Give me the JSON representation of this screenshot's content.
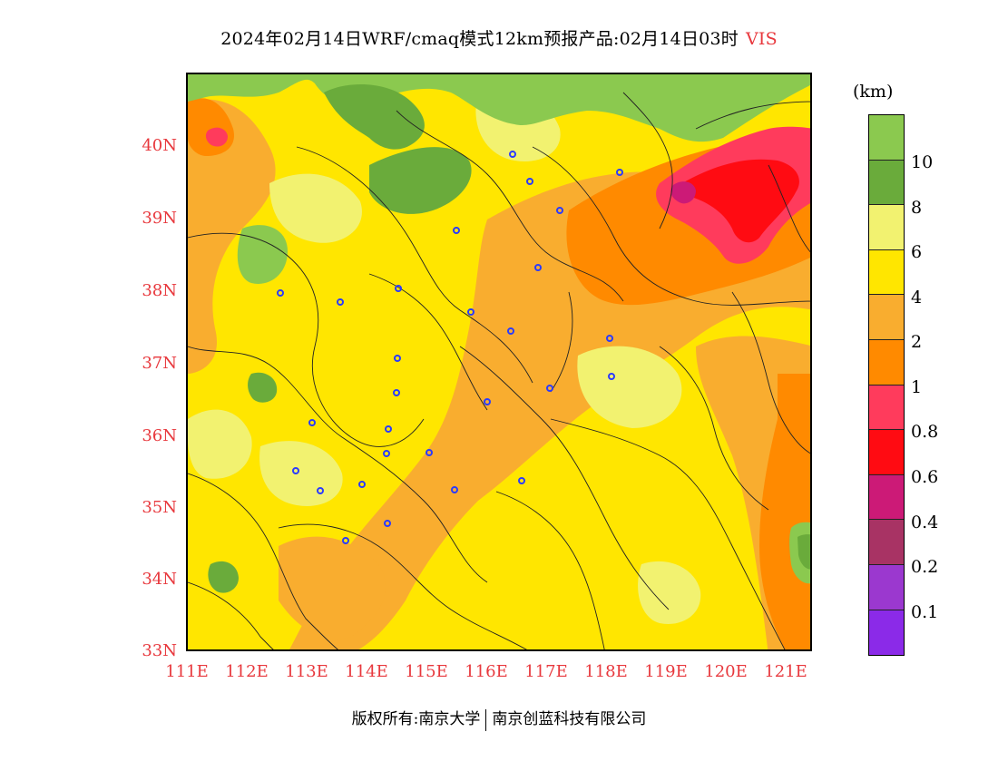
{
  "title": {
    "main": "2024年02月14日WRF/cmaq模式12km预报产品:02月14日03时",
    "variable": "VIS"
  },
  "unit": "(km)",
  "colors": {
    "accent_red": "#e8383d",
    "station_marker": "#2b3bff",
    "field_yellow": "#ffe600",
    "field_orange": "#f9a72a",
    "field_darkorange": "#ff8c00",
    "field_pink": "#ff3b5c",
    "field_red": "#ff1030",
    "field_lightgreen": "#88c84e",
    "field_darkgreen": "#6aa83a",
    "field_paleyellow": "#f4f27a"
  },
  "legend": {
    "swatches": [
      {
        "color": "#8bc94f"
      },
      {
        "color": "#6aab3b"
      },
      {
        "color": "#f2f270"
      },
      {
        "color": "#ffe600"
      },
      {
        "color": "#f9ad2f"
      },
      {
        "color": "#ff8a00"
      },
      {
        "color": "#ff3b5c"
      },
      {
        "color": "#ff0b12"
      },
      {
        "color": "#cc1a77"
      },
      {
        "color": "#a83364"
      },
      {
        "color": "#9b38cf"
      },
      {
        "color": "#8b2ae8"
      }
    ],
    "labels": [
      "10",
      "8",
      "6",
      "4",
      "2",
      "1",
      "0.8",
      "0.6",
      "0.4",
      "0.2",
      "0.1"
    ]
  },
  "axes": {
    "lat_labels": [
      "40N",
      "39N",
      "38N",
      "37N",
      "36N",
      "35N",
      "34N",
      "33N"
    ],
    "lon_labels": [
      "111E",
      "112E",
      "113E",
      "114E",
      "115E",
      "116E",
      "117E",
      "118E",
      "119E",
      "120E",
      "121E"
    ]
  },
  "footer": {
    "left": "版权所有:南京大学",
    "right": "南京创蓝科技有限公司"
  }
}
